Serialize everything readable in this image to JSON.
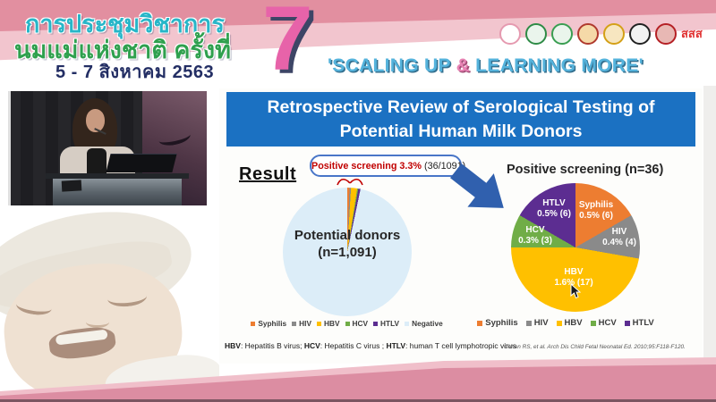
{
  "header": {
    "title_line1": "การประชุมวิชาการ",
    "title_line2": "นมแม่แห่งชาติ ครั้งที่",
    "title_line3": "5 - 7 สิงหาคม 2563",
    "edition_number": "7",
    "tagline_pre": "'SCALING UP ",
    "tagline_amp": "&",
    "tagline_post": " LEARNING MORE'",
    "tagline_color": "#55b3dc",
    "tagline_amp_color": "#e883b4",
    "band_colors": {
      "dark_pink": "#e28fa0",
      "light_pink": "#f2c5ce"
    },
    "logos": [
      {
        "name": "mother-child-foundation-logo",
        "ring": "#e59ab0",
        "bg": "#ffffff"
      },
      {
        "name": "green-health-emblem-logo",
        "ring": "#2e8b46",
        "bg": "#eaf5ec"
      },
      {
        "name": "green-medical-emblem-logo",
        "ring": "#3a9e52",
        "bg": "#eaf5ec"
      },
      {
        "name": "red-gold-royal-emblem-logo",
        "ring": "#b03a2e",
        "bg": "#f5d9a8"
      },
      {
        "name": "gold-crown-emblem-logo",
        "ring": "#d4a017",
        "bg": "#f7e6c0"
      },
      {
        "name": "black-round-emblem-logo",
        "ring": "#222222",
        "bg": "#f2f2f2"
      },
      {
        "name": "red-round-emblem-logo",
        "ring": "#b52025",
        "bg": "#e8b8b4"
      },
      {
        "name": "sss-thai-health-logo",
        "text": "สสส",
        "fg": "#e03030"
      }
    ]
  },
  "slide": {
    "title_line1": "Retrospective Review of Serological Testing of",
    "title_line2": "Potential Human Milk Donors",
    "title_bg": "#1b71c2",
    "result_label": "Result",
    "callout_highlight": "Positive screening 3.3%",
    "callout_detail": " (36/1091)",
    "footnote": [
      {
        "term": "HBV",
        "text": ": Hepatitis B virus; "
      },
      {
        "term": "HCV",
        "text": ": Hepatitis C virus ; "
      },
      {
        "term": "HTLV",
        "text": ": human T cell lymphotropic virus"
      }
    ],
    "citation": "Cohen RS, et al. Arch Dis Child Fetal Neonatal Ed. 2010;95:F118-F120."
  },
  "chart_data": [
    {
      "type": "pie",
      "title": "Potential donors (n=1,091)",
      "center_label": "Potential donors",
      "center_sublabel": "(n=1,091)",
      "total": 1091,
      "annotation": "Positive screening 3.3% (36/1091)",
      "legend_position": "bottom",
      "slices": [
        {
          "label": "Syphilis",
          "count": 6,
          "color": "#ED7D31"
        },
        {
          "label": "HIV",
          "count": 4,
          "color": "#8A8A8A"
        },
        {
          "label": "HBV",
          "count": 17,
          "color": "#FFC000"
        },
        {
          "label": "HCV",
          "count": 3,
          "color": "#70AD47"
        },
        {
          "label": "HTLV",
          "count": 6,
          "color": "#5C2D91"
        },
        {
          "label": "Negative",
          "count": 1055,
          "color": "#DCEDF8"
        }
      ]
    },
    {
      "type": "pie",
      "title": "Positive screening (n=36)",
      "total": 36,
      "legend_position": "bottom",
      "slices": [
        {
          "label": "Syphilis",
          "pct": "0.5%",
          "count": 6,
          "color": "#ED7D31"
        },
        {
          "label": "HIV",
          "pct": "0.4%",
          "count": 4,
          "color": "#8A8A8A"
        },
        {
          "label": "HBV",
          "pct": "1.6%",
          "count": 17,
          "color": "#FFC000"
        },
        {
          "label": "HCV",
          "pct": "0.3%",
          "count": 3,
          "color": "#70AD47"
        },
        {
          "label": "HTLV",
          "pct": "0.5%",
          "count": 6,
          "color": "#5C2D91"
        }
      ]
    }
  ]
}
